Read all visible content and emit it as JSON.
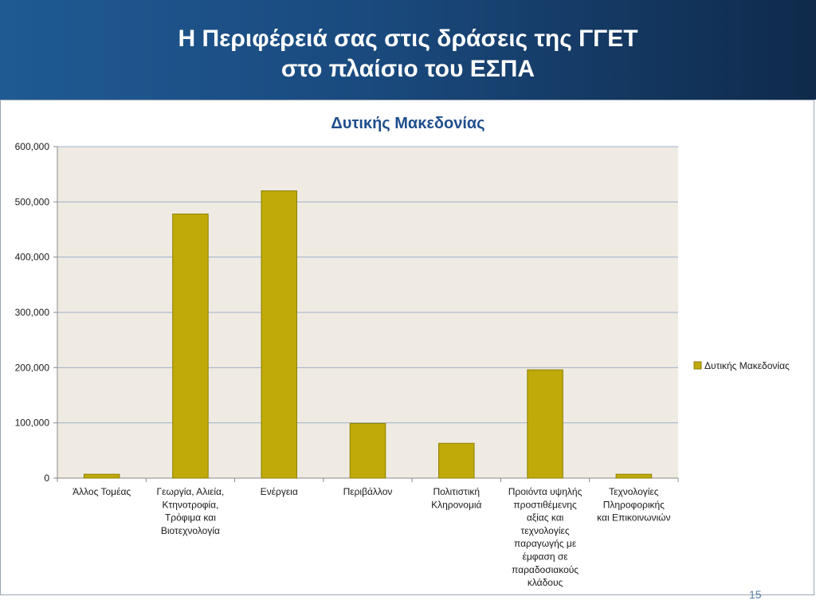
{
  "slide": {
    "title_line1": "Η Περιφέρειά σας στις δράσεις της ΓΓΕΤ",
    "title_line2": "στο πλαίσιο του ΕΣΠΑ",
    "page_number": "15"
  },
  "colors": {
    "header_left": "#1f5a93",
    "header_right": "#0f2a4b",
    "plot_background": "#efebe3",
    "bar_fill": "#bfaa0a",
    "bar_stroke": "#8f7f00",
    "gridline": "#9fb0c8",
    "title_text": "#1f4e8c"
  },
  "chart_data": {
    "type": "bar",
    "title": "Δυτικής Μακεδονίας",
    "categories": [
      "Άλλος Τομέας",
      "Γεωργία, Αλιεία, Κτηνοτροφία, Τρόφιμα και Βιοτεχνολογία",
      "Ενέργεια",
      "Περιβάλλον",
      "Πολιτιστική Κληρονομιά",
      "Προιόντα υψηλής προστιθέμενης αξίας και τεχνολογίες παραγωγής με έμφαση σε παραδοσιακούς κλάδους",
      "Τεχνολογίες Πληροφορικής και Επικοινωνιών"
    ],
    "category_label_lines": [
      [
        "Άλλος Τομέας"
      ],
      [
        "Γεωργία, Αλιεία,",
        "Κτηνοτροφία,",
        "Τρόφιμα και",
        "Βιοτεχνολογία"
      ],
      [
        "Ενέργεια"
      ],
      [
        "Περιβάλλον"
      ],
      [
        "Πολιτιστική",
        "Κληρονομιά"
      ],
      [
        "Προιόντα υψηλής",
        "προστιθέμενης",
        "αξίας και",
        "τεχνολογίες",
        "παραγωγής με",
        "έμφαση σε",
        "παραδοσιακούς",
        "κλάδους"
      ],
      [
        "Τεχνολογίες",
        "Πληροφορικής",
        "και Επικοινωνιών"
      ]
    ],
    "series": [
      {
        "name": "Δυτικής Μακεδονίας",
        "values": [
          7000,
          478000,
          520000,
          99000,
          63000,
          196000,
          7000
        ]
      }
    ],
    "ylim": [
      0,
      600000
    ],
    "yticks": [
      0,
      100000,
      200000,
      300000,
      400000,
      500000,
      600000
    ],
    "ytick_labels": [
      "0",
      "100,000",
      "200,000",
      "300,000",
      "400,000",
      "500,000",
      "600,000"
    ],
    "xlabel": "",
    "ylabel": "",
    "grid": true,
    "legend_position": "right"
  }
}
